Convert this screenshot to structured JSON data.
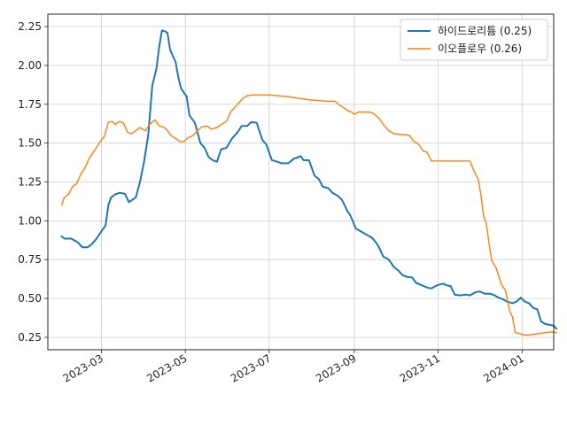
{
  "chart_data": {
    "type": "line",
    "title": "",
    "xlabel": "",
    "ylabel": "",
    "grid": true,
    "legend_position": "top-right",
    "x_axis": {
      "type": "date",
      "range": [
        "2023-01-21",
        "2024-01-24"
      ],
      "ticks": [
        {
          "date": "2023-03-01",
          "label": "2023-03"
        },
        {
          "date": "2023-05-01",
          "label": "2023-05"
        },
        {
          "date": "2023-07-01",
          "label": "2023-07"
        },
        {
          "date": "2023-09-01",
          "label": "2023-09"
        },
        {
          "date": "2023-11-01",
          "label": "2023-11"
        },
        {
          "date": "2024-01-01",
          "label": "2024-01"
        }
      ]
    },
    "y_axis": {
      "range": [
        0.17,
        2.33
      ],
      "ticks": [
        {
          "value": 0.25,
          "label": "0.25"
        },
        {
          "value": 0.5,
          "label": "0.50"
        },
        {
          "value": 0.75,
          "label": "0.75"
        },
        {
          "value": 1.0,
          "label": "1.00"
        },
        {
          "value": 1.25,
          "label": "1.25"
        },
        {
          "value": 1.5,
          "label": "1.50"
        },
        {
          "value": 1.75,
          "label": "1.75"
        },
        {
          "value": 2.0,
          "label": "2.00"
        },
        {
          "value": 2.25,
          "label": "2.25"
        }
      ]
    },
    "series": [
      {
        "name": "하이드로리튬 (0.25)",
        "color": "#1f77b4",
        "points": [
          [
            "2023-01-31",
            0.9
          ],
          [
            "2023-02-02",
            0.885
          ],
          [
            "2023-02-07",
            0.885
          ],
          [
            "2023-02-12",
            0.86
          ],
          [
            "2023-02-15",
            0.83
          ],
          [
            "2023-02-19",
            0.83
          ],
          [
            "2023-02-22",
            0.85
          ],
          [
            "2023-02-25",
            0.88
          ],
          [
            "2023-02-28",
            0.92
          ],
          [
            "2023-03-04",
            0.97
          ],
          [
            "2023-03-06",
            1.1
          ],
          [
            "2023-03-08",
            1.15
          ],
          [
            "2023-03-11",
            1.17
          ],
          [
            "2023-03-14",
            1.18
          ],
          [
            "2023-03-18",
            1.175
          ],
          [
            "2023-03-21",
            1.12
          ],
          [
            "2023-03-26",
            1.15
          ],
          [
            "2023-03-29",
            1.25
          ],
          [
            "2023-04-01",
            1.38
          ],
          [
            "2023-04-04",
            1.55
          ],
          [
            "2023-04-07",
            1.87
          ],
          [
            "2023-04-10",
            1.98
          ],
          [
            "2023-04-12",
            2.12
          ],
          [
            "2023-04-14",
            2.225
          ],
          [
            "2023-04-16",
            2.22
          ],
          [
            "2023-04-18",
            2.21
          ],
          [
            "2023-04-20",
            2.1
          ],
          [
            "2023-04-24",
            2.02
          ],
          [
            "2023-04-26",
            1.92
          ],
          [
            "2023-04-28",
            1.85
          ],
          [
            "2023-05-02",
            1.8
          ],
          [
            "2023-05-04",
            1.68
          ],
          [
            "2023-05-08",
            1.63
          ],
          [
            "2023-05-12",
            1.5
          ],
          [
            "2023-05-15",
            1.47
          ],
          [
            "2023-05-18",
            1.41
          ],
          [
            "2023-05-21",
            1.39
          ],
          [
            "2023-05-24",
            1.38
          ],
          [
            "2023-05-27",
            1.46
          ],
          [
            "2023-05-31",
            1.47
          ],
          [
            "2023-06-04",
            1.53
          ],
          [
            "2023-06-08",
            1.57
          ],
          [
            "2023-06-11",
            1.61
          ],
          [
            "2023-06-15",
            1.61
          ],
          [
            "2023-06-18",
            1.635
          ],
          [
            "2023-06-22",
            1.63
          ],
          [
            "2023-06-26",
            1.52
          ],
          [
            "2023-06-29",
            1.49
          ],
          [
            "2023-07-03",
            1.39
          ],
          [
            "2023-07-07",
            1.38
          ],
          [
            "2023-07-10",
            1.37
          ],
          [
            "2023-07-15",
            1.37
          ],
          [
            "2023-07-19",
            1.4
          ],
          [
            "2023-07-24",
            1.415
          ],
          [
            "2023-07-26",
            1.39
          ],
          [
            "2023-07-30",
            1.39
          ],
          [
            "2023-08-03",
            1.29
          ],
          [
            "2023-08-06",
            1.27
          ],
          [
            "2023-08-09",
            1.22
          ],
          [
            "2023-08-13",
            1.21
          ],
          [
            "2023-08-16",
            1.18
          ],
          [
            "2023-08-20",
            1.16
          ],
          [
            "2023-08-23",
            1.135
          ],
          [
            "2023-08-27",
            1.06
          ],
          [
            "2023-08-29",
            1.035
          ],
          [
            "2023-09-02",
            0.95
          ],
          [
            "2023-09-06",
            0.93
          ],
          [
            "2023-09-10",
            0.91
          ],
          [
            "2023-09-14",
            0.89
          ],
          [
            "2023-09-18",
            0.845
          ],
          [
            "2023-09-22",
            0.77
          ],
          [
            "2023-09-26",
            0.75
          ],
          [
            "2023-09-30",
            0.7
          ],
          [
            "2023-10-03",
            0.68
          ],
          [
            "2023-10-06",
            0.65
          ],
          [
            "2023-10-09",
            0.64
          ],
          [
            "2023-10-13",
            0.635
          ],
          [
            "2023-10-16",
            0.6
          ],
          [
            "2023-10-20",
            0.585
          ],
          [
            "2023-10-24",
            0.57
          ],
          [
            "2023-10-27",
            0.565
          ],
          [
            "2023-10-30",
            0.58
          ],
          [
            "2023-11-02",
            0.59
          ],
          [
            "2023-11-05",
            0.595
          ],
          [
            "2023-11-07",
            0.585
          ],
          [
            "2023-11-10",
            0.58
          ],
          [
            "2023-11-13",
            0.525
          ],
          [
            "2023-11-17",
            0.52
          ],
          [
            "2023-11-21",
            0.525
          ],
          [
            "2023-11-24",
            0.52
          ],
          [
            "2023-11-28",
            0.54
          ],
          [
            "2023-12-01",
            0.545
          ],
          [
            "2023-12-05",
            0.53
          ],
          [
            "2023-12-09",
            0.53
          ],
          [
            "2023-12-12",
            0.52
          ],
          [
            "2023-12-15",
            0.505
          ],
          [
            "2023-12-18",
            0.495
          ],
          [
            "2023-12-21",
            0.48
          ],
          [
            "2023-12-25",
            0.47
          ],
          [
            "2023-12-28",
            0.48
          ],
          [
            "2023-12-31",
            0.505
          ],
          [
            "2024-01-03",
            0.48
          ],
          [
            "2024-01-06",
            0.47
          ],
          [
            "2024-01-09",
            0.44
          ],
          [
            "2024-01-12",
            0.43
          ],
          [
            "2024-01-15",
            0.35
          ],
          [
            "2024-01-18",
            0.335
          ],
          [
            "2024-01-21",
            0.33
          ],
          [
            "2024-01-24",
            0.325
          ],
          [
            "2024-01-26",
            0.305
          ]
        ]
      },
      {
        "name": "이오플로우 (0.26)",
        "color": "#ff7f0e",
        "points": [
          [
            "2023-01-31",
            1.1
          ],
          [
            "2023-02-02",
            1.15
          ],
          [
            "2023-02-05",
            1.17
          ],
          [
            "2023-02-08",
            1.22
          ],
          [
            "2023-02-11",
            1.24
          ],
          [
            "2023-02-14",
            1.3
          ],
          [
            "2023-02-17",
            1.34
          ],
          [
            "2023-02-20",
            1.4
          ],
          [
            "2023-02-23",
            1.44
          ],
          [
            "2023-02-26",
            1.48
          ],
          [
            "2023-02-28",
            1.51
          ],
          [
            "2023-03-03",
            1.54
          ],
          [
            "2023-03-06",
            1.635
          ],
          [
            "2023-03-09",
            1.64
          ],
          [
            "2023-03-11",
            1.62
          ],
          [
            "2023-03-14",
            1.64
          ],
          [
            "2023-03-17",
            1.63
          ],
          [
            "2023-03-20",
            1.57
          ],
          [
            "2023-03-23",
            1.56
          ],
          [
            "2023-03-26",
            1.58
          ],
          [
            "2023-03-29",
            1.6
          ],
          [
            "2023-04-02",
            1.58
          ],
          [
            "2023-04-05",
            1.62
          ],
          [
            "2023-04-09",
            1.65
          ],
          [
            "2023-04-12",
            1.61
          ],
          [
            "2023-04-16",
            1.6
          ],
          [
            "2023-04-18",
            1.58
          ],
          [
            "2023-04-21",
            1.545
          ],
          [
            "2023-04-24",
            1.53
          ],
          [
            "2023-04-27",
            1.51
          ],
          [
            "2023-04-30",
            1.51
          ],
          [
            "2023-05-03",
            1.535
          ],
          [
            "2023-05-06",
            1.545
          ],
          [
            "2023-05-10",
            1.58
          ],
          [
            "2023-05-13",
            1.605
          ],
          [
            "2023-05-17",
            1.61
          ],
          [
            "2023-05-20",
            1.59
          ],
          [
            "2023-05-24",
            1.6
          ],
          [
            "2023-05-27",
            1.62
          ],
          [
            "2023-05-31",
            1.64
          ],
          [
            "2023-06-03",
            1.7
          ],
          [
            "2023-06-06",
            1.73
          ],
          [
            "2023-06-09",
            1.76
          ],
          [
            "2023-06-12",
            1.79
          ],
          [
            "2023-06-15",
            1.805
          ],
          [
            "2023-06-20",
            1.81
          ],
          [
            "2023-06-25",
            1.81
          ],
          [
            "2023-07-01",
            1.81
          ],
          [
            "2023-07-07",
            1.805
          ],
          [
            "2023-07-14",
            1.8
          ],
          [
            "2023-07-22",
            1.79
          ],
          [
            "2023-07-29",
            1.78
          ],
          [
            "2023-08-05",
            1.775
          ],
          [
            "2023-08-12",
            1.77
          ],
          [
            "2023-08-18",
            1.77
          ],
          [
            "2023-08-21",
            1.745
          ],
          [
            "2023-08-24",
            1.73
          ],
          [
            "2023-08-27",
            1.71
          ],
          [
            "2023-08-30",
            1.7
          ],
          [
            "2023-09-01",
            1.685
          ],
          [
            "2023-09-04",
            1.7
          ],
          [
            "2023-09-08",
            1.7
          ],
          [
            "2023-09-12",
            1.7
          ],
          [
            "2023-09-15",
            1.69
          ],
          [
            "2023-09-19",
            1.66
          ],
          [
            "2023-09-22",
            1.62
          ],
          [
            "2023-09-26",
            1.58
          ],
          [
            "2023-09-30",
            1.56
          ],
          [
            "2023-10-04",
            1.555
          ],
          [
            "2023-10-08",
            1.555
          ],
          [
            "2023-10-11",
            1.55
          ],
          [
            "2023-10-14",
            1.515
          ],
          [
            "2023-10-18",
            1.49
          ],
          [
            "2023-10-21",
            1.45
          ],
          [
            "2023-10-24",
            1.44
          ],
          [
            "2023-10-27",
            1.385
          ],
          [
            "2023-11-02",
            1.385
          ],
          [
            "2023-11-10",
            1.385
          ],
          [
            "2023-11-17",
            1.385
          ],
          [
            "2023-11-24",
            1.385
          ],
          [
            "2023-11-27",
            1.32
          ],
          [
            "2023-11-30",
            1.27
          ],
          [
            "2023-12-02",
            1.17
          ],
          [
            "2023-12-04",
            1.03
          ],
          [
            "2023-12-06",
            0.98
          ],
          [
            "2023-12-08",
            0.85
          ],
          [
            "2023-12-10",
            0.74
          ],
          [
            "2023-12-13",
            0.7
          ],
          [
            "2023-12-17",
            0.59
          ],
          [
            "2023-12-20",
            0.55
          ],
          [
            "2023-12-23",
            0.42
          ],
          [
            "2023-12-25",
            0.38
          ],
          [
            "2023-12-27",
            0.28
          ],
          [
            "2023-12-30",
            0.275
          ],
          [
            "2024-01-02",
            0.265
          ],
          [
            "2024-01-06",
            0.265
          ],
          [
            "2024-01-10",
            0.27
          ],
          [
            "2024-01-14",
            0.275
          ],
          [
            "2024-01-18",
            0.28
          ],
          [
            "2024-01-22",
            0.285
          ],
          [
            "2024-01-26",
            0.28
          ]
        ]
      }
    ]
  }
}
